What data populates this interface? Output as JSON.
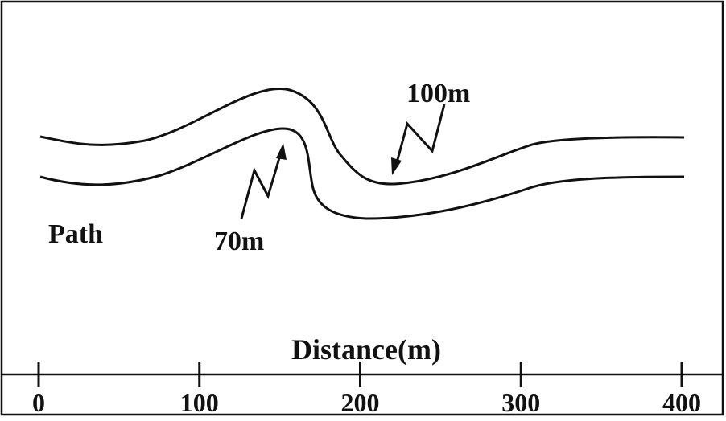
{
  "diagram": {
    "path_label": "Path",
    "xlabel": "Distance(m)",
    "annotations": [
      {
        "text": "100m"
      },
      {
        "text": "70m"
      }
    ],
    "ticks": [
      "0",
      "100",
      "200",
      "300",
      "400"
    ],
    "axis_range": [
      0,
      400
    ],
    "colors": {
      "stroke": "#111111",
      "background": "#ffffff"
    }
  }
}
